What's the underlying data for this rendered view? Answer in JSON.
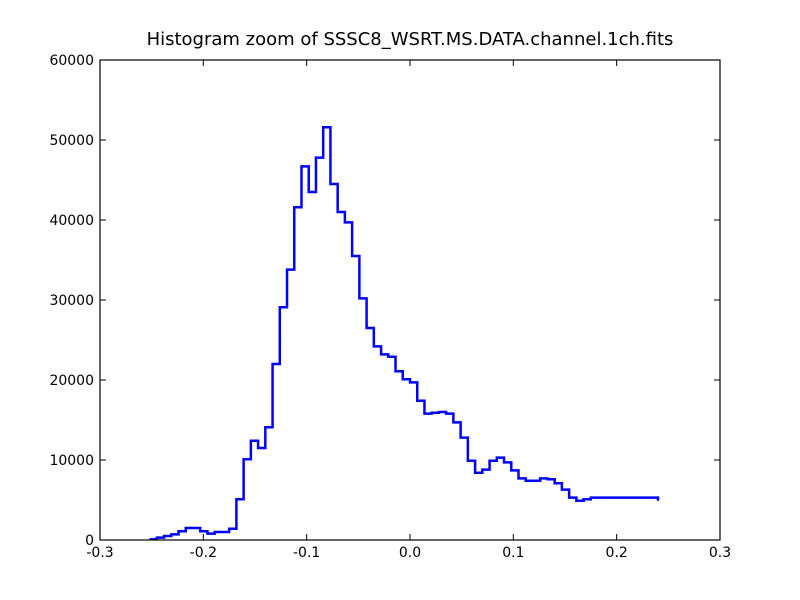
{
  "chart_data": {
    "type": "line",
    "drawstyle": "steps-post",
    "title": "Histogram zoom of SSSC8_WSRT.MS.DATA.channel.1ch.fits",
    "xlabel": "",
    "ylabel": "",
    "xlim": [
      -0.3,
      0.3
    ],
    "ylim": [
      0,
      60000
    ],
    "grid": false,
    "line_color": "#0000ff",
    "xticks": [
      -0.3,
      -0.2,
      -0.1,
      0.0,
      0.1,
      0.2,
      0.3
    ],
    "xtick_labels": [
      "-0.3",
      "-0.2",
      "-0.1",
      "0.0",
      "0.1",
      "0.2",
      "0.3"
    ],
    "yticks": [
      0,
      10000,
      20000,
      30000,
      40000,
      50000,
      60000
    ],
    "ytick_labels": [
      "0",
      "10000",
      "20000",
      "30000",
      "40000",
      "50000",
      "60000"
    ],
    "series": [
      {
        "x": [
          -0.252,
          -0.245,
          -0.238,
          -0.231,
          -0.224,
          -0.217,
          -0.21,
          -0.203,
          -0.196,
          -0.189,
          -0.182,
          -0.175,
          -0.168,
          -0.161,
          -0.154,
          -0.147,
          -0.14,
          -0.133,
          -0.126,
          -0.119,
          -0.112,
          -0.105,
          -0.098,
          -0.091,
          -0.084,
          -0.077,
          -0.07,
          -0.063,
          -0.056,
          -0.049,
          -0.042,
          -0.035,
          -0.028,
          -0.021,
          -0.014,
          -0.007,
          0.0,
          0.007,
          0.014,
          0.021,
          0.028,
          0.035,
          0.042,
          0.049,
          0.056,
          0.063,
          0.07,
          0.077,
          0.084,
          0.091,
          0.098,
          0.105,
          0.112,
          0.119,
          0.126,
          0.133,
          0.14,
          0.147,
          0.154,
          0.161,
          0.168,
          0.175,
          0.182,
          0.189,
          0.196,
          0.203,
          0.21,
          0.217,
          0.224,
          0.231,
          0.238,
          0.24
        ],
        "y": [
          100,
          300,
          500,
          700,
          1100,
          1500,
          1500,
          1100,
          800,
          1000,
          1000,
          1400,
          5100,
          10100,
          12400,
          11500,
          14100,
          22000,
          29100,
          33800,
          41600,
          46700,
          43500,
          47800,
          51600,
          44500,
          41000,
          39700,
          35500,
          30200,
          26500,
          24200,
          23200,
          22900,
          21100,
          20100,
          19700,
          17400,
          15800,
          15900,
          16000,
          15800,
          14700,
          12800,
          9900,
          8400,
          8800,
          9900,
          10300,
          9700,
          8700,
          7700,
          7400,
          7400,
          7700,
          7600,
          7100,
          6300,
          5300,
          4900,
          5100,
          5300,
          5300,
          5300,
          5300,
          5300,
          5300,
          5300,
          5300,
          5300,
          5300,
          4900
        ]
      }
    ]
  }
}
